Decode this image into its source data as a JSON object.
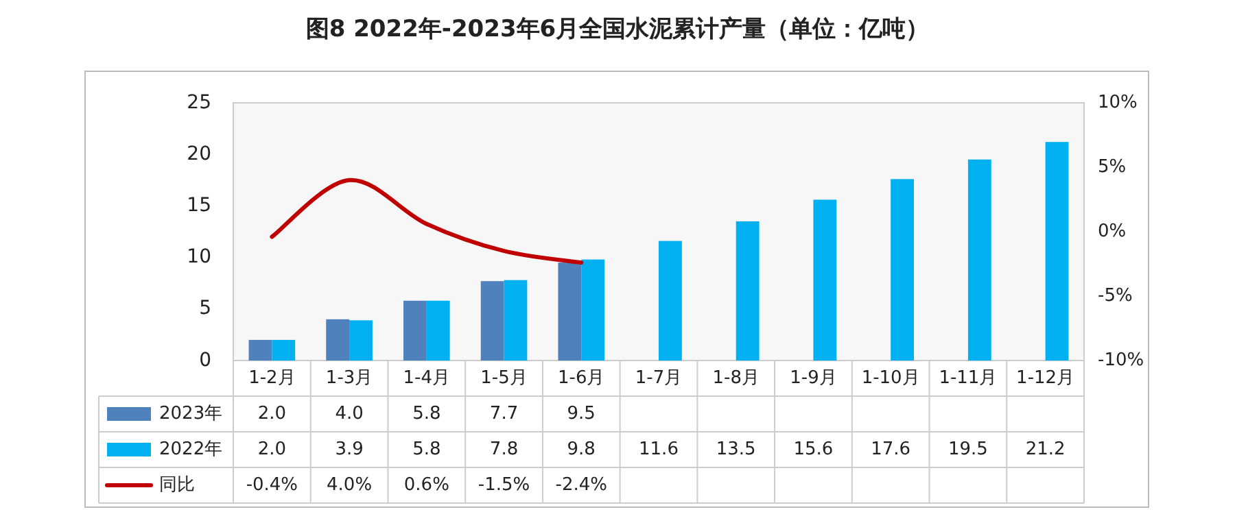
{
  "chart_data": {
    "type": "bar",
    "title": "图8  2022年-2023年6月全国水泥累计产量（单位：亿吨）",
    "categories": [
      "1-2月",
      "1-3月",
      "1-4月",
      "1-5月",
      "1-6月",
      "1-7月",
      "1-8月",
      "1-9月",
      "1-10月",
      "1-11月",
      "1-12月"
    ],
    "series": [
      {
        "name": "2023年",
        "color": "#4f81bd",
        "values": [
          2.0,
          4.0,
          5.8,
          7.7,
          9.5,
          null,
          null,
          null,
          null,
          null,
          null
        ],
        "value_labels": [
          "2.0",
          "4.0",
          "5.8",
          "7.7",
          "9.5",
          null,
          null,
          null,
          null,
          null,
          null
        ]
      },
      {
        "name": "2022年",
        "color": "#00b0f0",
        "values": [
          2.0,
          3.9,
          5.8,
          7.8,
          9.8,
          11.6,
          13.5,
          15.6,
          17.6,
          19.5,
          21.2
        ],
        "value_labels": [
          "2.0",
          "3.9",
          "5.8",
          "7.8",
          "9.8",
          "11.6",
          "13.5",
          "15.6",
          "17.6",
          "19.5",
          "21.2"
        ]
      },
      {
        "name": "同比",
        "type": "line",
        "axis": "y2",
        "color": "#c00000",
        "values": [
          -0.4,
          4.0,
          0.6,
          -1.5,
          -2.4,
          null,
          null,
          null,
          null,
          null,
          null
        ],
        "value_labels": [
          "-0.4%",
          "4.0%",
          "0.6%",
          "-1.5%",
          "-2.4%",
          null,
          null,
          null,
          null,
          null,
          null
        ]
      }
    ],
    "ylim": [
      0,
      25
    ],
    "yticks": [
      0,
      5,
      10,
      15,
      20,
      25
    ],
    "y2lim": [
      -10,
      10
    ],
    "y2ticks": [
      {
        "value": -10,
        "label": "-10%"
      },
      {
        "value": -5,
        "label": "-5%"
      },
      {
        "value": 0,
        "label": "0%"
      },
      {
        "value": 5,
        "label": "5%"
      },
      {
        "value": 10,
        "label": "10%"
      }
    ],
    "grid": false,
    "legend": "bottom",
    "marker": "none",
    "line_style": "solid"
  }
}
